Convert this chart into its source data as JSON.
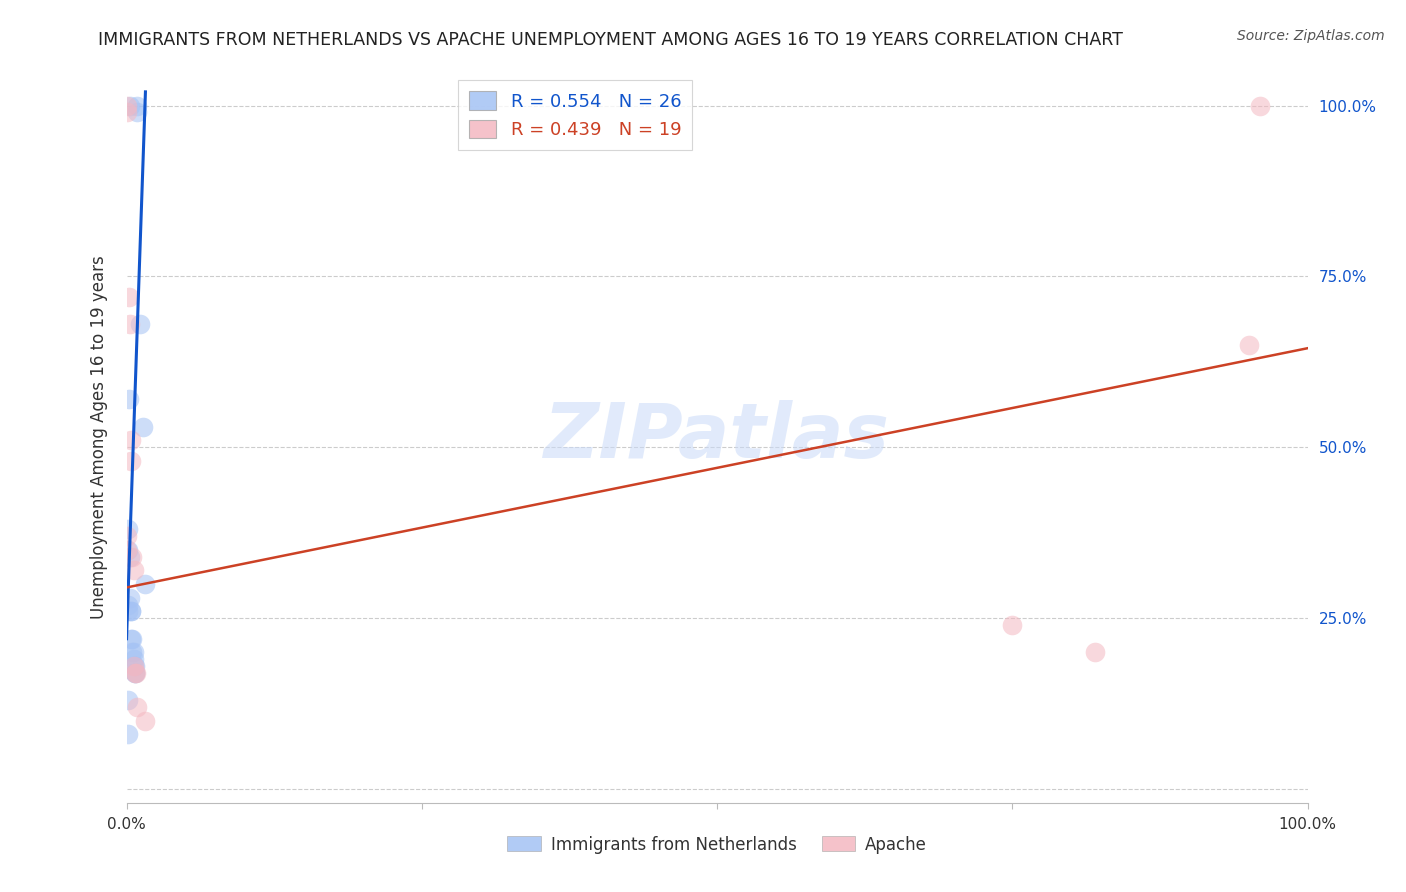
{
  "title": "IMMIGRANTS FROM NETHERLANDS VS APACHE UNEMPLOYMENT AMONG AGES 16 TO 19 YEARS CORRELATION CHART",
  "source": "Source: ZipAtlas.com",
  "ylabel": "Unemployment Among Ages 16 to 19 years",
  "xlim": [
    0.0,
    1.0
  ],
  "ylim": [
    -0.02,
    1.05
  ],
  "legend1_r": "0.554",
  "legend1_n": "26",
  "legend2_r": "0.439",
  "legend2_n": "19",
  "blue_color": "#a4c2f4",
  "pink_color": "#f4b8c1",
  "blue_line_color": "#1155cc",
  "pink_line_color": "#cc4125",
  "text_blue": "#1155cc",
  "watermark_color": "#c9daf8",
  "blue_points_x": [
    0.003,
    0.009,
    0.009,
    0.011,
    0.014,
    0.002,
    0.003,
    0.003,
    0.004,
    0.004,
    0.004,
    0.005,
    0.005,
    0.006,
    0.006,
    0.006,
    0.007,
    0.007,
    0.007,
    0.001,
    0.001,
    0.001,
    0.001,
    0.001,
    0.001,
    0.016
  ],
  "blue_points_y": [
    1.0,
    1.0,
    0.99,
    0.68,
    0.53,
    0.57,
    0.34,
    0.28,
    0.26,
    0.26,
    0.22,
    0.22,
    0.2,
    0.2,
    0.19,
    0.18,
    0.18,
    0.17,
    0.17,
    0.38,
    0.35,
    0.27,
    0.26,
    0.13,
    0.08,
    0.3
  ],
  "pink_points_x": [
    0.0,
    0.0,
    0.002,
    0.003,
    0.004,
    0.004,
    0.005,
    0.006,
    0.006,
    0.007,
    0.008,
    0.009,
    0.75,
    0.82,
    0.95,
    0.96,
    0.016,
    0.0,
    0.0
  ],
  "pink_points_y": [
    1.0,
    0.99,
    0.72,
    0.68,
    0.51,
    0.48,
    0.34,
    0.32,
    0.18,
    0.17,
    0.17,
    0.12,
    0.24,
    0.2,
    0.65,
    1.0,
    0.1,
    0.37,
    0.35
  ],
  "blue_trendline_x": [
    0.0,
    0.016
  ],
  "blue_trendline_y": [
    0.22,
    1.02
  ],
  "pink_trendline_x": [
    0.0,
    1.0
  ],
  "pink_trendline_y": [
    0.295,
    0.645
  ]
}
